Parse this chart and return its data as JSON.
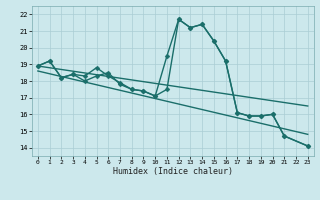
{
  "xlabel": "Humidex (Indice chaleur)",
  "ylabel": "",
  "bg_color": "#cce8ec",
  "grid_color": "#aacdd4",
  "line_color": "#1a6e6a",
  "xlim": [
    -0.5,
    23.5
  ],
  "ylim": [
    13.5,
    22.5
  ],
  "yticks": [
    14,
    15,
    16,
    17,
    18,
    19,
    20,
    21,
    22
  ],
  "xticks": [
    0,
    1,
    2,
    3,
    4,
    5,
    6,
    7,
    8,
    9,
    10,
    11,
    12,
    13,
    14,
    15,
    16,
    17,
    18,
    19,
    20,
    21,
    22,
    23
  ],
  "series1_x": [
    0,
    1,
    2,
    3,
    4,
    5,
    6,
    7,
    8,
    9,
    10,
    11,
    12,
    13,
    14,
    15,
    16,
    17,
    18,
    19,
    20,
    21,
    23
  ],
  "series1_y": [
    18.9,
    19.2,
    18.2,
    18.4,
    18.3,
    18.8,
    18.3,
    17.9,
    17.5,
    17.4,
    17.1,
    17.5,
    21.7,
    21.2,
    21.4,
    20.4,
    19.2,
    16.1,
    15.9,
    15.9,
    16.0,
    14.7,
    14.1
  ],
  "series2_x": [
    0,
    1,
    2,
    3,
    4,
    5,
    6,
    7,
    8,
    9,
    10,
    11,
    12,
    13,
    14,
    15,
    16,
    17,
    18,
    19,
    20,
    21,
    23
  ],
  "series2_y": [
    18.9,
    19.2,
    18.2,
    18.4,
    18.0,
    18.3,
    18.5,
    17.8,
    17.5,
    17.4,
    17.1,
    19.5,
    21.7,
    21.2,
    21.4,
    20.4,
    19.2,
    16.1,
    15.9,
    15.9,
    16.0,
    14.7,
    14.1
  ],
  "line1_x": [
    0,
    23
  ],
  "line1_y": [
    18.9,
    16.5
  ],
  "line2_x": [
    0,
    23
  ],
  "line2_y": [
    18.6,
    14.8
  ]
}
